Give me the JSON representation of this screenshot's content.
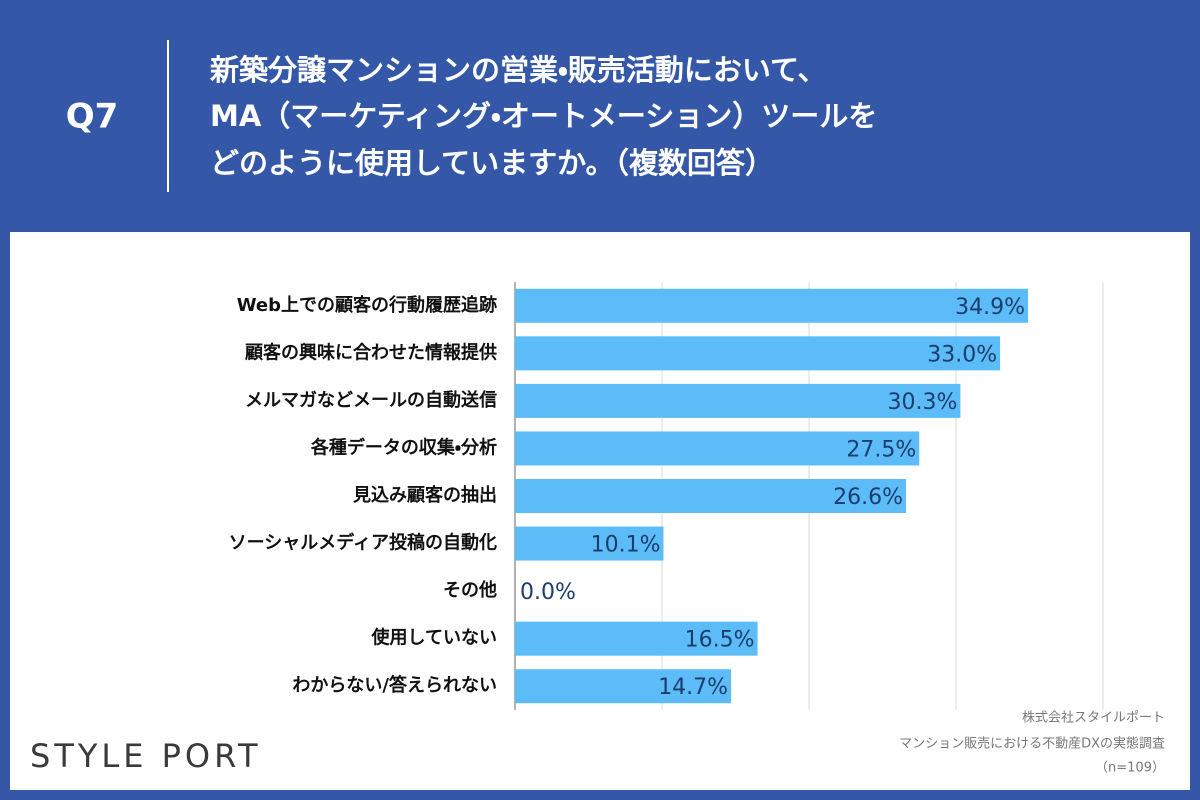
{
  "header": {
    "label": "Q7",
    "title_lines": [
      "新築分譲マンションの営業・販売活動において、",
      "MA（マーケティング・オートメーション）ツールを",
      "どのように使用していますか。（複数回答）"
    ]
  },
  "chart_data": {
    "type": "bar",
    "orientation": "horizontal",
    "categories": [
      "Web上での顧客の行動履歴追跡",
      "顧客の興味に合わせた情報提供",
      "メルマガなどメールの自動送信",
      "各種データの収集・分析",
      "見込み顧客の抽出",
      "ソーシャルメディア投稿の自動化",
      "その他",
      "使用していない",
      "わからない/答えられない"
    ],
    "values": [
      34.9,
      33.0,
      30.3,
      27.5,
      26.6,
      10.1,
      0.0,
      16.5,
      14.7
    ],
    "value_labels": [
      "34.9%",
      "33.0%",
      "30.3%",
      "27.5%",
      "26.6%",
      "10.1%",
      "0.0%",
      "16.5%",
      "14.7%"
    ],
    "color": "#5bbcf8",
    "xlim": [
      0,
      40
    ],
    "xticks": [
      0,
      10,
      20,
      30,
      40
    ],
    "grid": true
  },
  "footer": {
    "logo": "STYLE PORT",
    "source_lines": [
      "株式会社スタイルポート",
      "マンション販売における不動産DXの実態調査",
      "（n=109）"
    ]
  }
}
